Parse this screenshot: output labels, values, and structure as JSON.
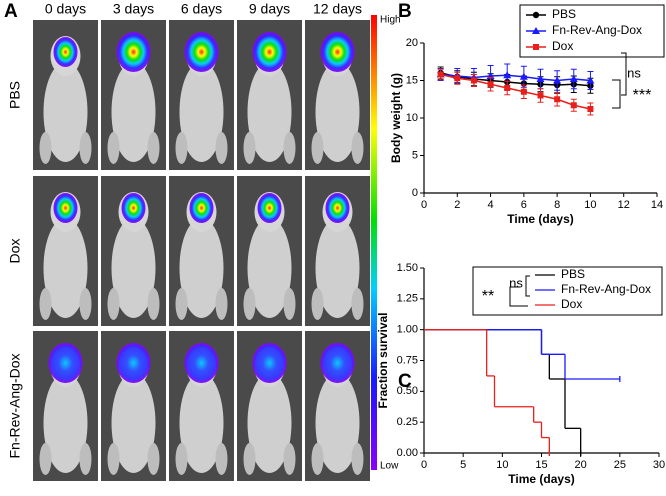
{
  "panel_a": {
    "panel_label": "A",
    "columns": [
      "0 days",
      "3 days",
      "6 days",
      "9 days",
      "12 days"
    ],
    "rows": [
      "PBS",
      "Dox",
      "Fn-Rev-Ang-Dox"
    ],
    "colorbar": {
      "high": "High",
      "low": "Low"
    }
  },
  "chart_data": [
    {
      "type": "line",
      "panel_label": "B",
      "xlabel": "Time (days)",
      "ylabel": "Body weight (g)",
      "xlim": [
        0,
        14
      ],
      "xticks": [
        0,
        2,
        4,
        6,
        8,
        10,
        12,
        14
      ],
      "ylim": [
        0,
        20
      ],
      "yticks": [
        0,
        5,
        10,
        15,
        20
      ],
      "x": [
        1,
        2,
        3,
        4,
        5,
        6,
        7,
        8,
        9,
        10
      ],
      "series": [
        {
          "name": "PBS",
          "color": "#000000",
          "marker": "circle",
          "values": [
            16.0,
            15.5,
            15.2,
            15.0,
            14.8,
            14.6,
            14.5,
            14.4,
            14.5,
            14.3
          ],
          "errors": [
            0.8,
            0.8,
            0.9,
            0.9,
            1.0,
            1.0,
            1.0,
            1.1,
            1.1,
            1.0
          ]
        },
        {
          "name": "Fn-Rev-Ang-Dox",
          "color": "#1a1aff",
          "marker": "triangle",
          "values": [
            15.8,
            15.6,
            15.4,
            15.6,
            15.7,
            15.5,
            15.2,
            15.0,
            15.2,
            15.0
          ],
          "errors": [
            0.8,
            1.0,
            1.2,
            1.4,
            1.5,
            1.4,
            1.3,
            1.3,
            1.3,
            1.2
          ]
        },
        {
          "name": "Dox",
          "color": "#e8201c",
          "marker": "square",
          "values": [
            15.8,
            15.3,
            15.0,
            14.5,
            14.0,
            13.5,
            13.0,
            12.5,
            11.7,
            11.2
          ],
          "errors": [
            0.7,
            0.8,
            0.8,
            0.9,
            0.9,
            0.9,
            0.9,
            0.9,
            0.8,
            0.8
          ]
        }
      ],
      "annotations": [
        "ns",
        "***"
      ]
    },
    {
      "type": "step",
      "panel_label": "C",
      "xlabel": "Time (days)",
      "ylabel": "Fraction survival",
      "xlim": [
        0,
        30
      ],
      "xticks": [
        0,
        5,
        10,
        15,
        20,
        25,
        30
      ],
      "ylim": [
        0,
        1.5
      ],
      "yticks": [
        {
          "value": 0,
          "label": "0.00"
        },
        {
          "value": 0.25,
          "label": "0.25"
        },
        {
          "value": 0.5,
          "label": "0.50"
        },
        {
          "value": 0.75,
          "label": "0.75"
        },
        {
          "value": 1,
          "label": "1.00"
        },
        {
          "value": 1.25,
          "label": "1.25"
        },
        {
          "value": 1.5,
          "label": "1.50"
        }
      ],
      "series": [
        {
          "name": "PBS",
          "color": "#000000",
          "x": [
            0,
            15,
            16,
            18,
            20
          ],
          "values": [
            1,
            0.8,
            0.6,
            0.2,
            0
          ]
        },
        {
          "name": "Fn-Rev-Ang-Dox",
          "color": "#1a1aff",
          "x": [
            0,
            15,
            18,
            25
          ],
          "values": [
            1,
            0.8,
            0.6,
            0.6
          ]
        },
        {
          "name": "Dox",
          "color": "#e8201c",
          "x": [
            0,
            8,
            9,
            14,
            15,
            16
          ],
          "values": [
            1,
            0.625,
            0.375,
            0.25,
            0.125,
            0
          ]
        }
      ],
      "annotations": [
        "ns",
        "**"
      ]
    }
  ]
}
